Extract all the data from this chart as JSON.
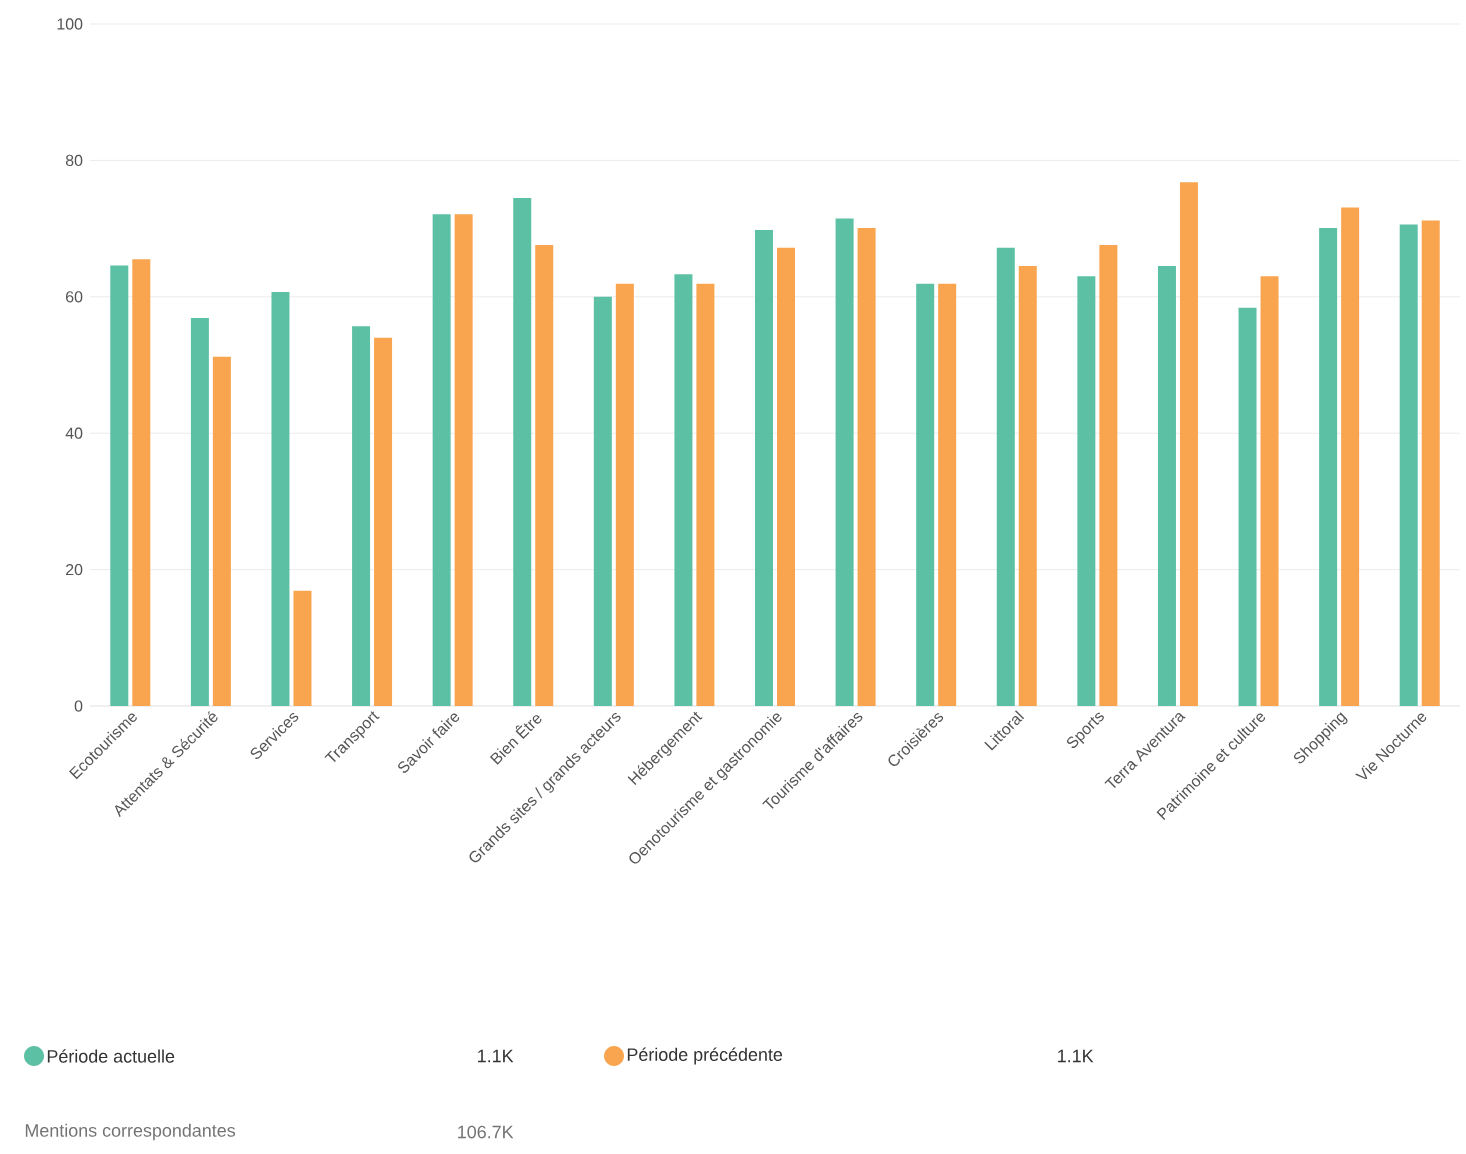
{
  "chart_data": {
    "type": "bar",
    "categories": [
      "Ecotourisme",
      "Attentats & Sécurité",
      "Services",
      "Transport",
      "Savoir faire",
      "Bien Être",
      "Grands sites / grands acteurs",
      "Hébergement",
      "Oenotourisme et gastronomie",
      "Tourisme d'affaires",
      "Croisières",
      "Littoral",
      "Sports",
      "Terra Aventura",
      "Patrimoine et culture",
      "Shopping",
      "Vie Nocturne"
    ],
    "series": [
      {
        "name": "Période actuelle",
        "color": "#5bc0a4",
        "values": [
          64.6,
          56.9,
          60.7,
          55.7,
          72.1,
          74.5,
          60.0,
          63.3,
          69.8,
          71.5,
          61.9,
          67.2,
          63.0,
          64.5,
          58.4,
          70.1,
          70.6
        ]
      },
      {
        "name": "Période précédente",
        "color": "#f9a44e",
        "values": [
          65.5,
          51.2,
          16.9,
          54.0,
          72.1,
          67.6,
          61.9,
          61.9,
          67.2,
          70.1,
          61.9,
          64.5,
          67.6,
          76.8,
          63.0,
          73.1,
          71.2
        ]
      }
    ],
    "ylim": [
      0,
      100
    ],
    "yticks": [
      0,
      20,
      40,
      60,
      80,
      100
    ],
    "grid": "y",
    "legend": "bottom",
    "annotations": [
      "1.1K",
      "1.1K",
      "Mentions correspondantes",
      "106.7K"
    ]
  }
}
